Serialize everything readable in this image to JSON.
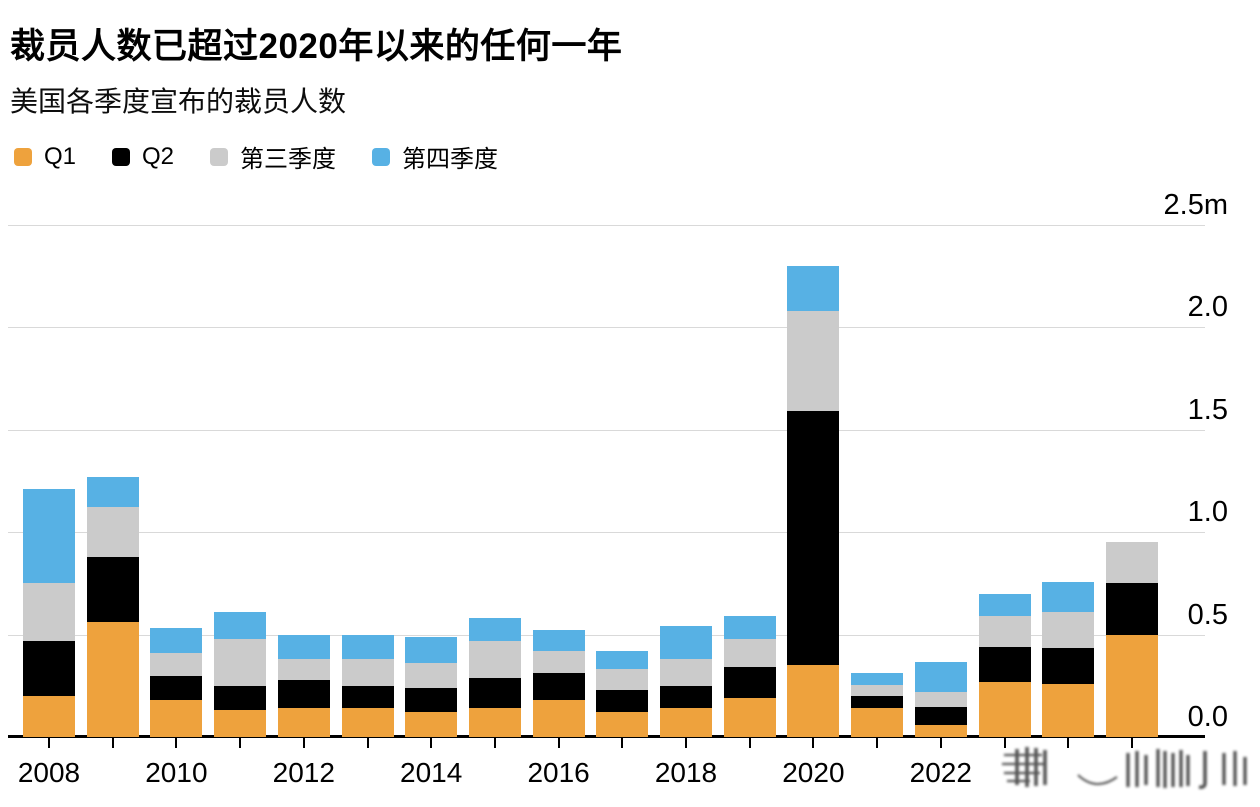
{
  "header": {
    "title": "裁员人数已超过2020年以来的任何一年",
    "subtitle": "美国各季度宣布的裁员人数"
  },
  "legend": [
    {
      "label": "Q1",
      "color": "#EEA23D"
    },
    {
      "label": "Q2",
      "color": "#000000"
    },
    {
      "label": "第三季度",
      "color": "#CBCBCB"
    },
    {
      "label": "第四季度",
      "color": "#57B1E4"
    }
  ],
  "chart_data": {
    "type": "bar",
    "stacked": true,
    "title": "裁员人数已超过2020年以来的任何一年",
    "subtitle": "美国各季度宣布的裁员人数",
    "unit": "millions of announced layoffs",
    "grid": true,
    "legend_position": "top-left",
    "ylim": [
      0,
      2.5
    ],
    "y_ticks": [
      "0.0",
      "0.5",
      "1.0",
      "1.5",
      "2.0",
      "2.5m"
    ],
    "y_tick_values": [
      0,
      0.5,
      1,
      1.5,
      2,
      2.5
    ],
    "x_tick_labels": [
      "2008",
      "2010",
      "2012",
      "2014",
      "2016",
      "2018",
      "2020",
      "2022"
    ],
    "categories": [
      2008,
      2009,
      2010,
      2011,
      2012,
      2013,
      2014,
      2015,
      2016,
      2017,
      2018,
      2019,
      2020,
      2021,
      2022,
      2023,
      2024,
      2025
    ],
    "series": [
      {
        "name": "Q1",
        "color": "#EEA23D",
        "values": [
          0.2,
          0.56,
          0.18,
          0.13,
          0.14,
          0.14,
          0.12,
          0.14,
          0.18,
          0.12,
          0.14,
          0.19,
          0.35,
          0.14,
          0.06,
          0.27,
          0.26,
          0.5
        ]
      },
      {
        "name": "Q2",
        "color": "#000000",
        "values": [
          0.27,
          0.32,
          0.12,
          0.12,
          0.14,
          0.11,
          0.12,
          0.15,
          0.13,
          0.11,
          0.11,
          0.15,
          1.24,
          0.06,
          0.085,
          0.17,
          0.175,
          0.25
        ]
      },
      {
        "name": "第三季度",
        "color": "#CBCBCB",
        "values": [
          0.28,
          0.24,
          0.11,
          0.23,
          0.1,
          0.13,
          0.12,
          0.18,
          0.11,
          0.1,
          0.13,
          0.14,
          0.49,
          0.055,
          0.075,
          0.15,
          0.175,
          0.2
        ]
      },
      {
        "name": "第四季度",
        "color": "#57B1E4",
        "values": [
          0.46,
          0.15,
          0.12,
          0.13,
          0.12,
          0.12,
          0.13,
          0.11,
          0.1,
          0.09,
          0.16,
          0.11,
          0.22,
          0.055,
          0.145,
          0.11,
          0.145,
          0
        ]
      }
    ]
  },
  "watermark": {
    "note": "illegible smudged watermark over bottom-right axis area"
  }
}
